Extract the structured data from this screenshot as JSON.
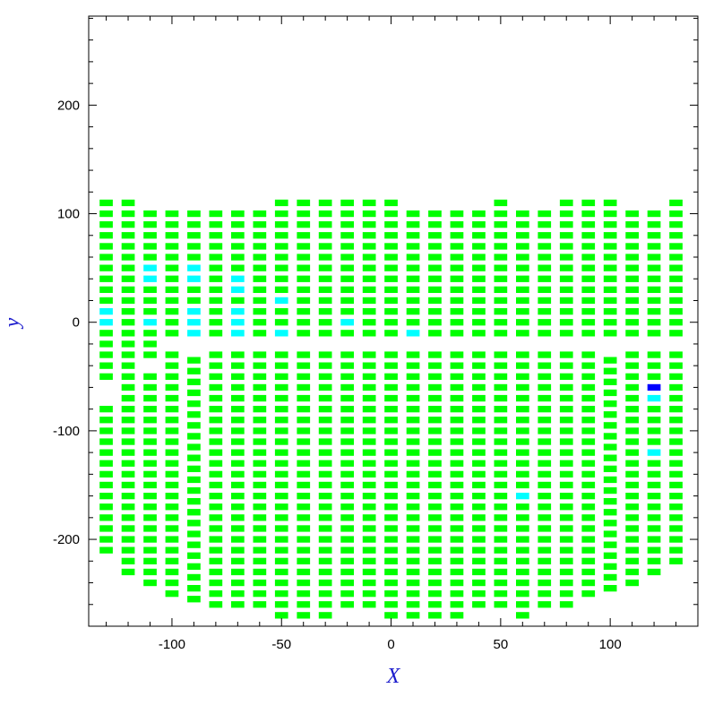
{
  "chart_data": {
    "type": "heatmap",
    "title": "",
    "xlabel": "X",
    "ylabel": "y",
    "xlim": [
      -138,
      140
    ],
    "ylim": [
      -280,
      282
    ],
    "xticks": [
      -100,
      -50,
      0,
      50,
      100
    ],
    "xtick_labels": [
      "-100",
      "-50",
      "0",
      "50",
      "100"
    ],
    "yticks": [
      -200,
      -100,
      0,
      100,
      200
    ],
    "ytick_labels": [
      "-200",
      "-100",
      "0",
      "100",
      "200"
    ],
    "x_minor_step": 10,
    "y_minor_step": 20,
    "grid": false,
    "cell_width": 6,
    "cell_height": 6,
    "default_color": "#00ff00",
    "colors": {
      "normal": "#00ff00",
      "cyan": "#00ffff",
      "blue": "#0000ff",
      "axis_title": "#1a1acc"
    },
    "columns": [
      {
        "x": -130,
        "segments": [
          [
            -210,
            -80
          ],
          [
            -50,
            110
          ]
        ]
      },
      {
        "x": -120,
        "segments": [
          [
            -230,
            110
          ]
        ]
      },
      {
        "x": -110,
        "segments": [
          [
            -240,
            -50
          ],
          [
            -30,
            100
          ]
        ]
      },
      {
        "x": -100,
        "segments": [
          [
            -250,
            -30
          ],
          [
            -10,
            100
          ]
        ]
      },
      {
        "x": -90,
        "segments": [
          [
            -255,
            -30
          ],
          [
            -10,
            100
          ]
        ]
      },
      {
        "x": -80,
        "segments": [
          [
            -260,
            -30
          ],
          [
            -10,
            100
          ]
        ]
      },
      {
        "x": -70,
        "segments": [
          [
            -260,
            -30
          ],
          [
            -10,
            100
          ]
        ]
      },
      {
        "x": -60,
        "segments": [
          [
            -260,
            -30
          ],
          [
            -10,
            100
          ]
        ]
      },
      {
        "x": -50,
        "segments": [
          [
            -270,
            -30
          ],
          [
            -10,
            110
          ]
        ]
      },
      {
        "x": -40,
        "segments": [
          [
            -270,
            -30
          ],
          [
            -10,
            110
          ]
        ]
      },
      {
        "x": -30,
        "segments": [
          [
            -270,
            -180
          ],
          [
            -170,
            -30
          ],
          [
            -10,
            110
          ]
        ]
      },
      {
        "x": -20,
        "segments": [
          [
            -260,
            -30
          ],
          [
            -10,
            110
          ]
        ]
      },
      {
        "x": -10,
        "segments": [
          [
            -260,
            -210
          ],
          [
            -200,
            -30
          ],
          [
            -10,
            110
          ]
        ]
      },
      {
        "x": 0,
        "segments": [
          [
            -270,
            -30
          ],
          [
            -10,
            110
          ]
        ]
      },
      {
        "x": 10,
        "segments": [
          [
            -270,
            -30
          ],
          [
            -10,
            100
          ]
        ]
      },
      {
        "x": 20,
        "segments": [
          [
            -270,
            -30
          ],
          [
            -10,
            100
          ]
        ]
      },
      {
        "x": 30,
        "segments": [
          [
            -270,
            -30
          ],
          [
            -10,
            100
          ]
        ]
      },
      {
        "x": 40,
        "segments": [
          [
            -260,
            -30
          ],
          [
            -10,
            100
          ]
        ]
      },
      {
        "x": 50,
        "segments": [
          [
            -260,
            -30
          ],
          [
            -10,
            110
          ]
        ]
      },
      {
        "x": 60,
        "segments": [
          [
            -270,
            -30
          ],
          [
            -10,
            100
          ]
        ]
      },
      {
        "x": 70,
        "segments": [
          [
            -260,
            -30
          ],
          [
            -10,
            100
          ]
        ]
      },
      {
        "x": 80,
        "segments": [
          [
            -260,
            -210
          ],
          [
            -200,
            -30
          ],
          [
            -10,
            110
          ]
        ]
      },
      {
        "x": 90,
        "segments": [
          [
            -250,
            -30
          ],
          [
            -10,
            110
          ]
        ]
      },
      {
        "x": 100,
        "segments": [
          [
            -245,
            -30
          ],
          [
            -10,
            110
          ]
        ]
      },
      {
        "x": 110,
        "segments": [
          [
            -240,
            -30
          ],
          [
            -10,
            100
          ]
        ]
      },
      {
        "x": 120,
        "segments": [
          [
            -230,
            -30
          ],
          [
            -10,
            100
          ]
        ]
      },
      {
        "x": 130,
        "segments": [
          [
            -220,
            -30
          ],
          [
            -10,
            110
          ]
        ]
      }
    ],
    "colored_cells": [
      {
        "x": -130,
        "y": 10,
        "color": "#00ffff"
      },
      {
        "x": -130,
        "y": 0,
        "color": "#00ffff"
      },
      {
        "x": -110,
        "y": 50,
        "color": "#00ffff"
      },
      {
        "x": -110,
        "y": 40,
        "color": "#00ffff"
      },
      {
        "x": -110,
        "y": 0,
        "color": "#00ffff"
      },
      {
        "x": -90,
        "y": 50,
        "color": "#00ffff"
      },
      {
        "x": -90,
        "y": 40,
        "color": "#00ffff"
      },
      {
        "x": -90,
        "y": 10,
        "color": "#00ffff"
      },
      {
        "x": -90,
        "y": 0,
        "color": "#00ffff"
      },
      {
        "x": -90,
        "y": -10,
        "color": "#00ffff"
      },
      {
        "x": -70,
        "y": 40,
        "color": "#00ffff"
      },
      {
        "x": -70,
        "y": 30,
        "color": "#00ffff"
      },
      {
        "x": -70,
        "y": 10,
        "color": "#00ffff"
      },
      {
        "x": -70,
        "y": 0,
        "color": "#00ffff"
      },
      {
        "x": -70,
        "y": -10,
        "color": "#00ffff"
      },
      {
        "x": -50,
        "y": 20,
        "color": "#00ffff"
      },
      {
        "x": -50,
        "y": -10,
        "color": "#00ffff"
      },
      {
        "x": -20,
        "y": 0,
        "color": "#00ffff"
      },
      {
        "x": 10,
        "y": -10,
        "color": "#00ffff"
      },
      {
        "x": 60,
        "y": -160,
        "color": "#00ffff"
      },
      {
        "x": 120,
        "y": -60,
        "color": "#0000ff"
      },
      {
        "x": 120,
        "y": -70,
        "color": "#00ffff"
      },
      {
        "x": 120,
        "y": -120,
        "color": "#00ffff"
      }
    ]
  }
}
